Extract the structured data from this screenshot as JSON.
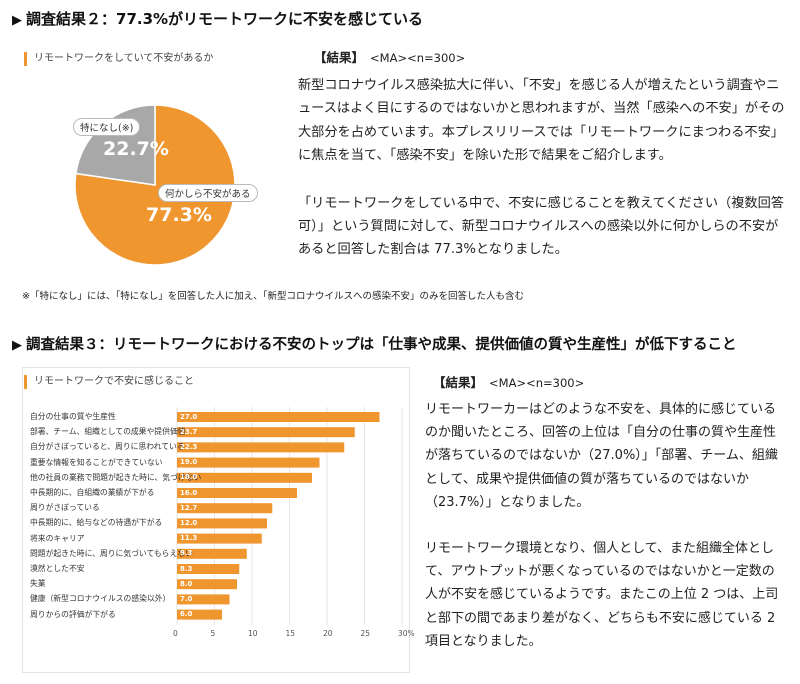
{
  "section2": {
    "heading": "調査結果２：77.3%がリモートワークに不安を感じている",
    "panel_title": "リモートワークをしていて不安があるか",
    "pie": [
      {
        "label": "何かしら不安がある",
        "value": 77.3,
        "pct_text": "77.3%",
        "color": "#f0962f"
      },
      {
        "label": "特になし(※)",
        "value": 22.7,
        "pct_text": "22.7%",
        "color": "#a8a8a8"
      }
    ],
    "result_label": "【結果】",
    "result_meta": "<MA><n=300>",
    "paragraph1": "新型コロナウイルス感染拡大に伴い、「不安」を感じる人が増えたという調査やニュースはよく目にするのではないかと思われますが、当然「感染への不安」がその大部分を占めています。本プレスリリースでは「リモートワークにまつわる不安」に焦点を当て、「感染不安」を除いた形で結果をご紹介します。",
    "paragraph2": "「リモートワークをしている中で、不安に感じることを教えてください（複数回答可）」という質問に対して、新型コロナウイルスへの感染以外に何かしらの不安があると回答した割合は 77.3%となりました。",
    "note": "※「特になし」には、「特になし」を回答した人に加え、「新型コロナウイルスへの感染不安」のみを回答した人も含む"
  },
  "section3": {
    "heading": "調査結果３：リモートワークにおける不安のトップは「仕事や成果、提供価値の質や生産性」が低下すること",
    "panel_title": "リモートワークで不安に感じること",
    "result_label": "【結果】",
    "result_meta": "<MA><n=300>",
    "paragraph1": "リモートワーカーはどのような不安を、具体的に感じているのか聞いたところ、回答の上位は「自分の仕事の質や生産性が落ちているのではないか（27.0%）」「部署、チーム、組織として、成果や提供価値の質が落ちているのではないか（23.7%）」となりました。",
    "paragraph2": "リモートワーク環境となり、個人として、また組織全体として、アウトプットが悪くなっているのではないかと一定数の人が不安を感じているようです。またこの上位 2 つは、上司と部下の間であまり差がなく、どちらも不安に感じている 2 項目となりました。"
  },
  "chart_data": {
    "type": "bar",
    "orientation": "horizontal",
    "title": "リモートワークで不安に感じること",
    "categories": [
      "自分の仕事の質や生産性",
      "部署、チーム、組織としての成果や提供価値",
      "自分がさぼっていると、周りに思われている",
      "重要な情報を知ることができていない",
      "他の社員の業務で問題が起きた時に、気づけない",
      "中長期的に、自組織の業績が下がる",
      "周りがさぼっている",
      "中長期的に、給与などの待遇が下がる",
      "将来のキャリア",
      "問題が起きた時に、周りに気づいてもらえない",
      "漠然とした不安",
      "失業",
      "健康（新型コロナウイルスの感染以外）",
      "周りからの評価が下がる"
    ],
    "values": [
      27.0,
      23.7,
      22.3,
      19.0,
      18.0,
      16.0,
      12.7,
      12.0,
      11.3,
      9.3,
      8.3,
      8.0,
      7.0,
      6.0
    ],
    "value_labels": [
      "27.0",
      "23.7",
      "22.3",
      "19.0",
      "18.0",
      "16.0",
      "12.7",
      "12.0",
      "11.3",
      "9.3",
      "8.3",
      "8.0",
      "7.0",
      "6.0"
    ],
    "xlim": [
      0,
      30
    ],
    "xticks": [
      "0",
      "5",
      "10",
      "15",
      "20",
      "25",
      "30%"
    ],
    "bar_color": "#f0962f"
  }
}
